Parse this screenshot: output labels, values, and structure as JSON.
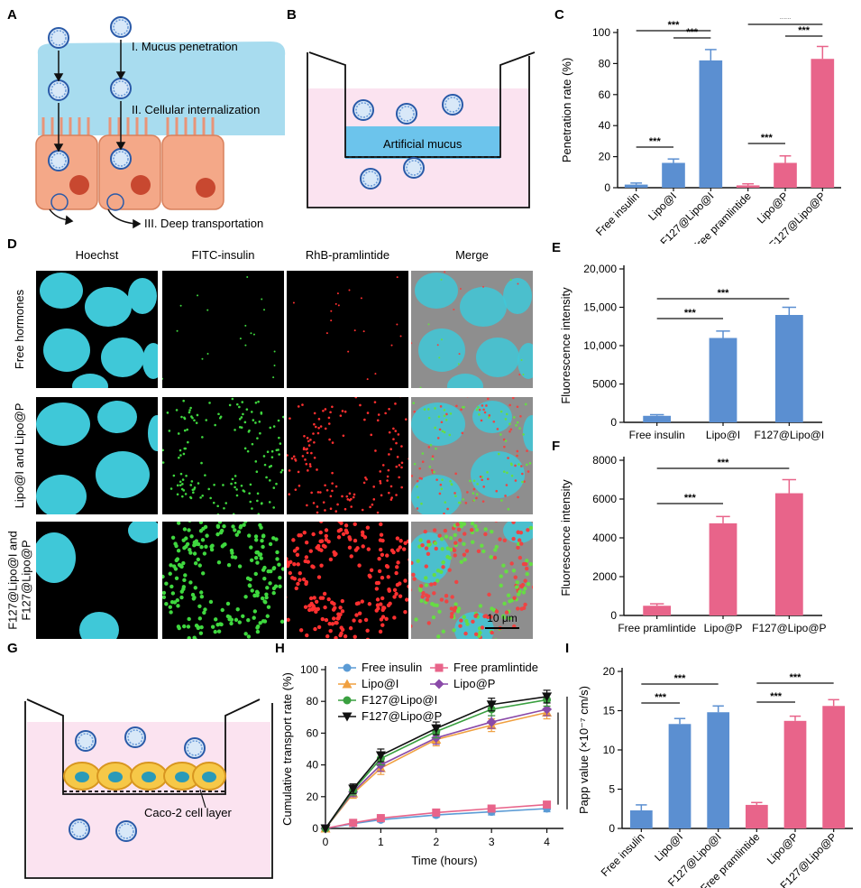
{
  "panel_labels": {
    "A": "A",
    "B": "B",
    "C": "C",
    "D": "D",
    "E": "E",
    "F": "F",
    "G": "G",
    "H": "H",
    "I": "I"
  },
  "panelA": {
    "step1": "I. Mucus penetration",
    "step2": "II. Cellular internalization",
    "step3": "III. Deep transportation"
  },
  "panelB": {
    "mucus_label": "Artificial mucus"
  },
  "panelD": {
    "columns": [
      "Hoechst",
      "FITC-insulin",
      "RhB-pramlintide",
      "Merge"
    ],
    "rows": [
      "Free hormones",
      "Lipo@I and Lipo@P",
      "F127@Lipo@I and F127@Lipo@P"
    ],
    "row_lines": [
      [
        "Free hormones"
      ],
      [
        "Lipo@I and Lipo@P"
      ],
      [
        "F127@Lipo@I and",
        "F127@Lipo@P"
      ]
    ],
    "scale_bar": "10 μm"
  },
  "panelG": {
    "cell_label": "Caco-2 cell layer"
  },
  "colors": {
    "blue": "#5b8fd1",
    "pink": "#e8648a",
    "mucus": "#a8dcef",
    "medium": "#fbe3f0"
  },
  "chart_data": [
    {
      "id": "C",
      "type": "bar",
      "categories": [
        "Free insulin",
        "Lipo@I",
        "F127@Lipo@I",
        "Free pramlintide",
        "Lipo@P",
        "F127@Lipo@P"
      ],
      "values": [
        2,
        16,
        82,
        1.5,
        16,
        83
      ],
      "errors": [
        1,
        2.5,
        7,
        1,
        4.5,
        8
      ],
      "bar_colors": [
        "blue",
        "blue",
        "blue",
        "pink",
        "pink",
        "pink"
      ],
      "ylabel": "Penetration rate (%)",
      "ylim": [
        0,
        100
      ],
      "yticks": [
        0,
        20,
        40,
        60,
        80,
        100
      ],
      "significance": [
        {
          "from": 0,
          "to": 1,
          "label": "***"
        },
        {
          "from": 1,
          "to": 2,
          "label": "***"
        },
        {
          "from": 0,
          "to": 2,
          "label": "***"
        },
        {
          "from": 3,
          "to": 4,
          "label": "***"
        },
        {
          "from": 4,
          "to": 5,
          "label": "***"
        },
        {
          "from": 3,
          "to": 5,
          "label": "***"
        }
      ]
    },
    {
      "id": "E",
      "type": "bar",
      "categories": [
        "Free insulin",
        "Lipo@I",
        "F127@Lipo@I"
      ],
      "values": [
        850,
        11000,
        14000
      ],
      "errors": [
        150,
        900,
        1000
      ],
      "bar_colors": [
        "blue",
        "blue",
        "blue"
      ],
      "ylabel": "Fluorescence intensity",
      "ylim": [
        0,
        20000
      ],
      "yticks": [
        0,
        5000,
        10000,
        15000,
        20000
      ],
      "ytick_labels": [
        "0",
        "5000",
        "10,000",
        "15,000",
        "20,000"
      ],
      "significance": [
        {
          "from": 0,
          "to": 1,
          "label": "***"
        },
        {
          "from": 0,
          "to": 2,
          "label": "***"
        }
      ]
    },
    {
      "id": "F",
      "type": "bar",
      "categories": [
        "Free pramlintide",
        "Lipo@P",
        "F127@Lipo@P"
      ],
      "values": [
        500,
        4750,
        6300
      ],
      "errors": [
        100,
        350,
        700
      ],
      "bar_colors": [
        "pink",
        "pink",
        "pink"
      ],
      "ylabel": "Fluorescence intensity",
      "ylim": [
        0,
        8000
      ],
      "yticks": [
        0,
        2000,
        4000,
        6000,
        8000
      ],
      "ytick_labels": [
        "0",
        "2000",
        "4000",
        "6000",
        "8000"
      ],
      "significance": [
        {
          "from": 0,
          "to": 1,
          "label": "***"
        },
        {
          "from": 0,
          "to": 2,
          "label": "***"
        }
      ]
    },
    {
      "id": "H",
      "type": "line",
      "xlabel": "Time (hours)",
      "ylabel": "Cumulative transport rate (%)",
      "xlim": [
        0,
        4.3
      ],
      "ylim": [
        0,
        100
      ],
      "xticks": [
        0,
        1,
        2,
        3,
        4
      ],
      "yticks": [
        0,
        20,
        40,
        60,
        80,
        100
      ],
      "x": [
        0,
        0.5,
        1,
        2,
        3,
        4
      ],
      "series": [
        {
          "name": "Free insulin",
          "color": "#5b9bd5",
          "marker": "circle",
          "values": [
            0,
            3,
            5.5,
            8.5,
            10.5,
            12.5
          ],
          "errors": [
            0,
            1,
            1.5,
            1.5,
            2,
            2
          ]
        },
        {
          "name": "Free pramlintide",
          "color": "#e8648a",
          "marker": "square",
          "values": [
            0,
            3.5,
            6.5,
            10,
            12.5,
            15
          ],
          "errors": [
            0,
            1,
            1.5,
            1.5,
            2,
            2
          ]
        },
        {
          "name": "Lipo@I",
          "color": "#f0a040",
          "marker": "triangle",
          "values": [
            0,
            22,
            38,
            56,
            65,
            73
          ],
          "errors": [
            0,
            3,
            4,
            4,
            4,
            4
          ]
        },
        {
          "name": "Lipo@P",
          "color": "#8a4aa8",
          "marker": "diamond",
          "values": [
            0,
            23,
            40,
            57,
            67,
            75
          ],
          "errors": [
            0,
            3,
            4,
            4,
            4,
            4
          ]
        },
        {
          "name": "F127@Lipo@I",
          "color": "#3aa040",
          "marker": "circle",
          "values": [
            0,
            24,
            44,
            61,
            75,
            81
          ],
          "errors": [
            0,
            3,
            4,
            4,
            4,
            4
          ]
        },
        {
          "name": "F127@Lipo@P",
          "color": "#111111",
          "marker": "triangle-down",
          "values": [
            0,
            25,
            46,
            63,
            78,
            83
          ],
          "errors": [
            0,
            3,
            4,
            4,
            4,
            4
          ]
        }
      ],
      "significance": {
        "label": "***",
        "note": "two brackets on right side"
      }
    },
    {
      "id": "I",
      "type": "bar",
      "categories": [
        "Free insulin",
        "Lipo@I",
        "F127@Lipo@I",
        "Free pramlintide",
        "Lipo@P",
        "F127@Lipo@P"
      ],
      "values": [
        2.3,
        13.3,
        14.8,
        3.0,
        13.7,
        15.6
      ],
      "errors": [
        0.7,
        0.7,
        0.8,
        0.3,
        0.6,
        0.8
      ],
      "bar_colors": [
        "blue",
        "blue",
        "blue",
        "pink",
        "pink",
        "pink"
      ],
      "ylabel": "Papp value (×10⁻⁷ cm/s)",
      "ylim": [
        0,
        20
      ],
      "yticks": [
        0,
        5,
        10,
        15,
        20
      ],
      "significance": [
        {
          "from": 0,
          "to": 1,
          "label": "***"
        },
        {
          "from": 0,
          "to": 2,
          "label": "***"
        },
        {
          "from": 3,
          "to": 4,
          "label": "***"
        },
        {
          "from": 3,
          "to": 5,
          "label": "***"
        }
      ]
    }
  ]
}
